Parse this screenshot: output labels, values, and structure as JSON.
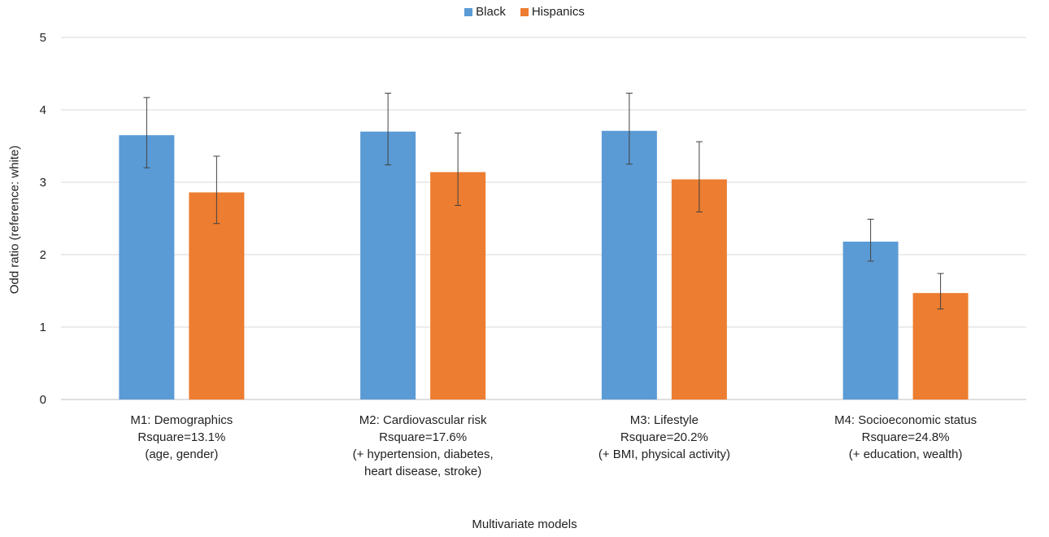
{
  "chart_data": {
    "type": "bar",
    "title": "",
    "xlabel": "Multivariate models",
    "ylabel": "Odd ratio (reference: white)",
    "ylim": [
      0,
      5
    ],
    "yticks": [
      "0",
      "1",
      "2",
      "3",
      "4",
      "5"
    ],
    "grid": true,
    "legend_position": "top-center",
    "categories": [
      [
        "M1: Demographics",
        "Rsquare=13.1%",
        "(age, gender)"
      ],
      [
        "M2: Cardiovascular risk",
        "Rsquare=17.6%",
        "(+ hypertension, diabetes,",
        "heart disease, stroke)"
      ],
      [
        "M3: Lifestyle",
        "Rsquare=20.2%",
        "(+ BMI, physical activity)"
      ],
      [
        "M4: Socioeconomic status",
        "Rsquare=24.8%",
        "(+ education, wealth)"
      ]
    ],
    "series": [
      {
        "name": "Black",
        "color": "#5B9BD5",
        "values": [
          3.65,
          3.7,
          3.71,
          2.18
        ],
        "error_low": [
          3.2,
          3.24,
          3.25,
          1.91
        ],
        "error_high": [
          4.17,
          4.23,
          4.23,
          2.49
        ]
      },
      {
        "name": "Hispanics",
        "color": "#ED7D31",
        "values": [
          2.86,
          3.14,
          3.04,
          1.47
        ],
        "error_low": [
          2.43,
          2.68,
          2.59,
          1.25
        ],
        "error_high": [
          3.36,
          3.68,
          3.56,
          1.74
        ]
      }
    ]
  }
}
